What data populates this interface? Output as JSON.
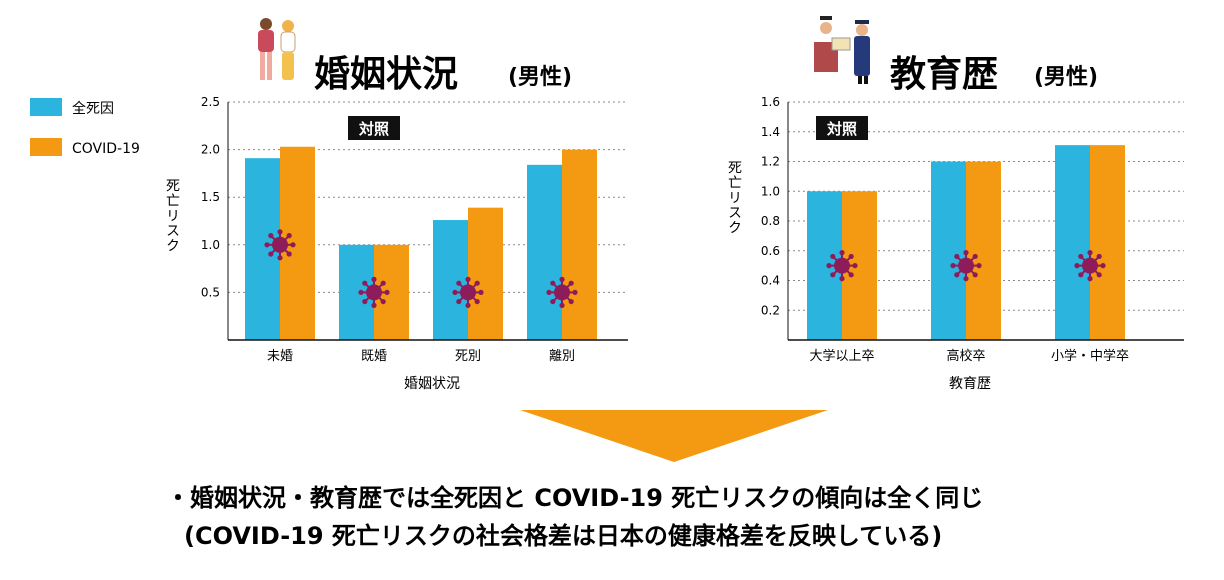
{
  "colors": {
    "all_cause": "#2bb5de",
    "covid": "#f39a12",
    "virus": "#8e1c5a",
    "label_box": "#111111"
  },
  "legend": [
    {
      "label": "全死因",
      "color": "#2bb5de"
    },
    {
      "label": "COVID-19",
      "color": "#f39a12"
    }
  ],
  "chart_data": [
    {
      "type": "bar",
      "title": "婚姻状況",
      "subtitle": "(男性)",
      "title_icon": "couple-illustration",
      "xlabel": "婚姻状況",
      "ylabel": "死亡リスク",
      "ylim": [
        0,
        2.5
      ],
      "yticks": [
        "0.5",
        "1.0",
        "1.5",
        "2.0",
        "2.5"
      ],
      "grid": true,
      "categories": [
        "未婚",
        "既婚",
        "死別",
        "離別"
      ],
      "series": [
        {
          "name": "全死因",
          "values": [
            1.91,
            1.0,
            1.26,
            1.84
          ]
        },
        {
          "name": "COVID-19",
          "values": [
            2.03,
            1.0,
            1.39,
            2.0
          ]
        }
      ],
      "annotation": "対照",
      "annotation_category": "既婚",
      "virus_icon": "virus-icon"
    },
    {
      "type": "bar",
      "title": "教育歴",
      "subtitle": "(男性)",
      "title_icon": "graduation-illustration",
      "xlabel": "教育歴",
      "ylabel": "死亡リスク",
      "ylim": [
        0,
        1.6
      ],
      "yticks": [
        "0.2",
        "0.4",
        "0.6",
        "0.8",
        "1.0",
        "1.2",
        "1.4",
        "1.6"
      ],
      "grid": true,
      "categories": [
        "大学以上卒",
        "高校卒",
        "小学・中学卒"
      ],
      "series": [
        {
          "name": "全死因",
          "values": [
            1.0,
            1.2,
            1.31
          ]
        },
        {
          "name": "COVID-19",
          "values": [
            1.0,
            1.2,
            1.31
          ]
        }
      ],
      "annotation": "対照",
      "annotation_category": "大学以上卒",
      "virus_icon": "virus-icon"
    }
  ],
  "conclusion": {
    "line1": "・婚姻状況・教育歴では全死因と COVID-19 死亡リスクの傾向は全く同じ",
    "line2": "(COVID-19 死亡リスクの社会格差は日本の健康格差を反映している)"
  }
}
